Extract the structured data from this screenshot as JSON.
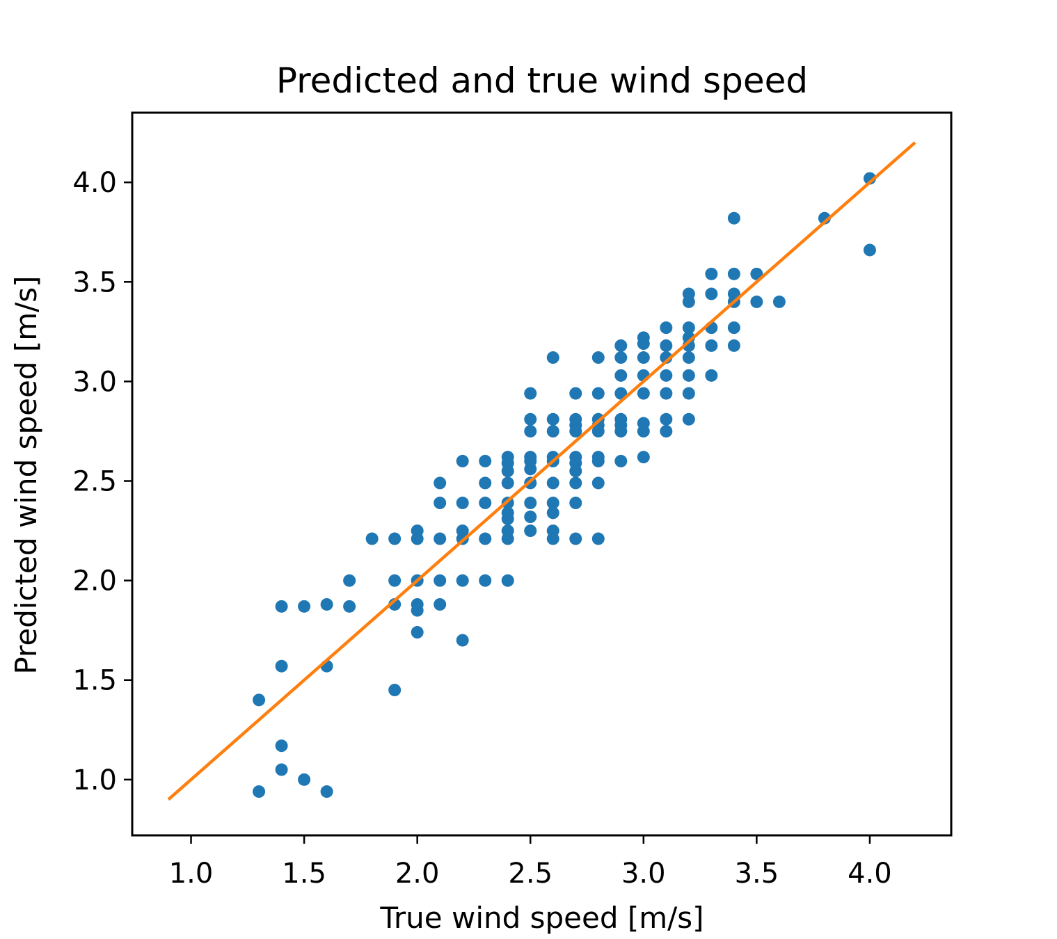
{
  "chart_data": {
    "type": "scatter",
    "title": "Predicted and true wind speed",
    "xlabel": "True wind speed [m/s]",
    "ylabel": "Predicted wind speed [m/s]",
    "xlim": [
      0.74,
      4.36
    ],
    "ylim": [
      0.72,
      4.35
    ],
    "xticks": [
      "1.0",
      "1.5",
      "2.0",
      "2.5",
      "3.0",
      "3.5",
      "4.0"
    ],
    "yticks": [
      "1.0",
      "1.5",
      "2.0",
      "2.5",
      "3.0",
      "3.5",
      "4.0"
    ],
    "grid": false,
    "colors": {
      "points": "#1f77b4",
      "line": "#ff7f0e"
    },
    "series": [
      {
        "type": "scatter",
        "color": "#1f77b4",
        "points": [
          [
            1.3,
            1.4
          ],
          [
            1.3,
            0.94
          ],
          [
            1.4,
            1.87
          ],
          [
            1.4,
            1.57
          ],
          [
            1.4,
            1.17
          ],
          [
            1.4,
            1.05
          ],
          [
            1.5,
            1.87
          ],
          [
            1.5,
            1.0
          ],
          [
            1.6,
            1.88
          ],
          [
            1.6,
            1.57
          ],
          [
            1.6,
            0.94
          ],
          [
            1.7,
            2.0
          ],
          [
            1.7,
            1.87
          ],
          [
            1.8,
            2.21
          ],
          [
            1.9,
            2.21
          ],
          [
            1.9,
            2.0
          ],
          [
            1.9,
            1.88
          ],
          [
            1.9,
            1.45
          ],
          [
            2.0,
            2.25
          ],
          [
            2.0,
            2.21
          ],
          [
            2.0,
            2.0
          ],
          [
            2.0,
            1.88
          ],
          [
            2.0,
            1.85
          ],
          [
            2.0,
            1.74
          ],
          [
            2.1,
            2.49
          ],
          [
            2.1,
            2.39
          ],
          [
            2.1,
            2.21
          ],
          [
            2.1,
            2.0
          ],
          [
            2.1,
            1.88
          ],
          [
            2.2,
            2.6
          ],
          [
            2.2,
            2.39
          ],
          [
            2.2,
            2.25
          ],
          [
            2.2,
            2.21
          ],
          [
            2.2,
            2.0
          ],
          [
            2.2,
            1.7
          ],
          [
            2.3,
            2.6
          ],
          [
            2.3,
            2.49
          ],
          [
            2.3,
            2.39
          ],
          [
            2.3,
            2.21
          ],
          [
            2.3,
            2.0
          ],
          [
            2.4,
            2.62
          ],
          [
            2.4,
            2.59
          ],
          [
            2.4,
            2.55
          ],
          [
            2.4,
            2.49
          ],
          [
            2.4,
            2.39
          ],
          [
            2.4,
            2.34
          ],
          [
            2.4,
            2.31
          ],
          [
            2.4,
            2.25
          ],
          [
            2.4,
            2.21
          ],
          [
            2.4,
            2.0
          ],
          [
            2.5,
            2.94
          ],
          [
            2.5,
            2.81
          ],
          [
            2.5,
            2.75
          ],
          [
            2.5,
            2.62
          ],
          [
            2.5,
            2.6
          ],
          [
            2.5,
            2.56
          ],
          [
            2.5,
            2.49
          ],
          [
            2.5,
            2.39
          ],
          [
            2.5,
            2.32
          ],
          [
            2.5,
            2.25
          ],
          [
            2.6,
            3.12
          ],
          [
            2.6,
            2.81
          ],
          [
            2.6,
            2.75
          ],
          [
            2.6,
            2.62
          ],
          [
            2.6,
            2.6
          ],
          [
            2.6,
            2.49
          ],
          [
            2.6,
            2.39
          ],
          [
            2.6,
            2.34
          ],
          [
            2.6,
            2.25
          ],
          [
            2.6,
            2.21
          ],
          [
            2.7,
            2.94
          ],
          [
            2.7,
            2.81
          ],
          [
            2.7,
            2.78
          ],
          [
            2.7,
            2.75
          ],
          [
            2.7,
            2.62
          ],
          [
            2.7,
            2.59
          ],
          [
            2.7,
            2.55
          ],
          [
            2.7,
            2.49
          ],
          [
            2.7,
            2.39
          ],
          [
            2.7,
            2.21
          ],
          [
            2.8,
            3.12
          ],
          [
            2.8,
            2.94
          ],
          [
            2.8,
            2.81
          ],
          [
            2.8,
            2.78
          ],
          [
            2.8,
            2.75
          ],
          [
            2.8,
            2.62
          ],
          [
            2.8,
            2.6
          ],
          [
            2.8,
            2.49
          ],
          [
            2.8,
            2.21
          ],
          [
            2.9,
            3.18
          ],
          [
            2.9,
            3.12
          ],
          [
            2.9,
            3.03
          ],
          [
            2.9,
            2.94
          ],
          [
            2.9,
            2.81
          ],
          [
            2.9,
            2.78
          ],
          [
            2.9,
            2.75
          ],
          [
            2.9,
            2.6
          ],
          [
            3.0,
            3.22
          ],
          [
            3.0,
            3.19
          ],
          [
            3.0,
            3.12
          ],
          [
            3.0,
            3.03
          ],
          [
            3.0,
            2.94
          ],
          [
            3.0,
            2.79
          ],
          [
            3.0,
            2.75
          ],
          [
            3.0,
            2.62
          ],
          [
            3.1,
            3.27
          ],
          [
            3.1,
            3.18
          ],
          [
            3.1,
            3.12
          ],
          [
            3.1,
            3.03
          ],
          [
            3.1,
            2.94
          ],
          [
            3.1,
            2.81
          ],
          [
            3.1,
            2.75
          ],
          [
            3.2,
            3.44
          ],
          [
            3.2,
            3.4
          ],
          [
            3.2,
            3.27
          ],
          [
            3.2,
            3.22
          ],
          [
            3.2,
            3.18
          ],
          [
            3.2,
            3.12
          ],
          [
            3.2,
            3.03
          ],
          [
            3.2,
            2.94
          ],
          [
            3.2,
            2.81
          ],
          [
            3.3,
            3.54
          ],
          [
            3.3,
            3.44
          ],
          [
            3.3,
            3.27
          ],
          [
            3.3,
            3.18
          ],
          [
            3.3,
            3.03
          ],
          [
            3.4,
            3.82
          ],
          [
            3.4,
            3.54
          ],
          [
            3.4,
            3.44
          ],
          [
            3.4,
            3.4
          ],
          [
            3.4,
            3.27
          ],
          [
            3.4,
            3.18
          ],
          [
            3.5,
            3.54
          ],
          [
            3.5,
            3.4
          ],
          [
            3.6,
            3.4
          ],
          [
            3.8,
            3.82
          ],
          [
            4.0,
            4.02
          ],
          [
            4.0,
            3.66
          ]
        ]
      },
      {
        "type": "line",
        "color": "#ff7f0e",
        "points": [
          [
            0.9,
            0.9
          ],
          [
            4.2,
            4.2
          ]
        ]
      }
    ]
  }
}
